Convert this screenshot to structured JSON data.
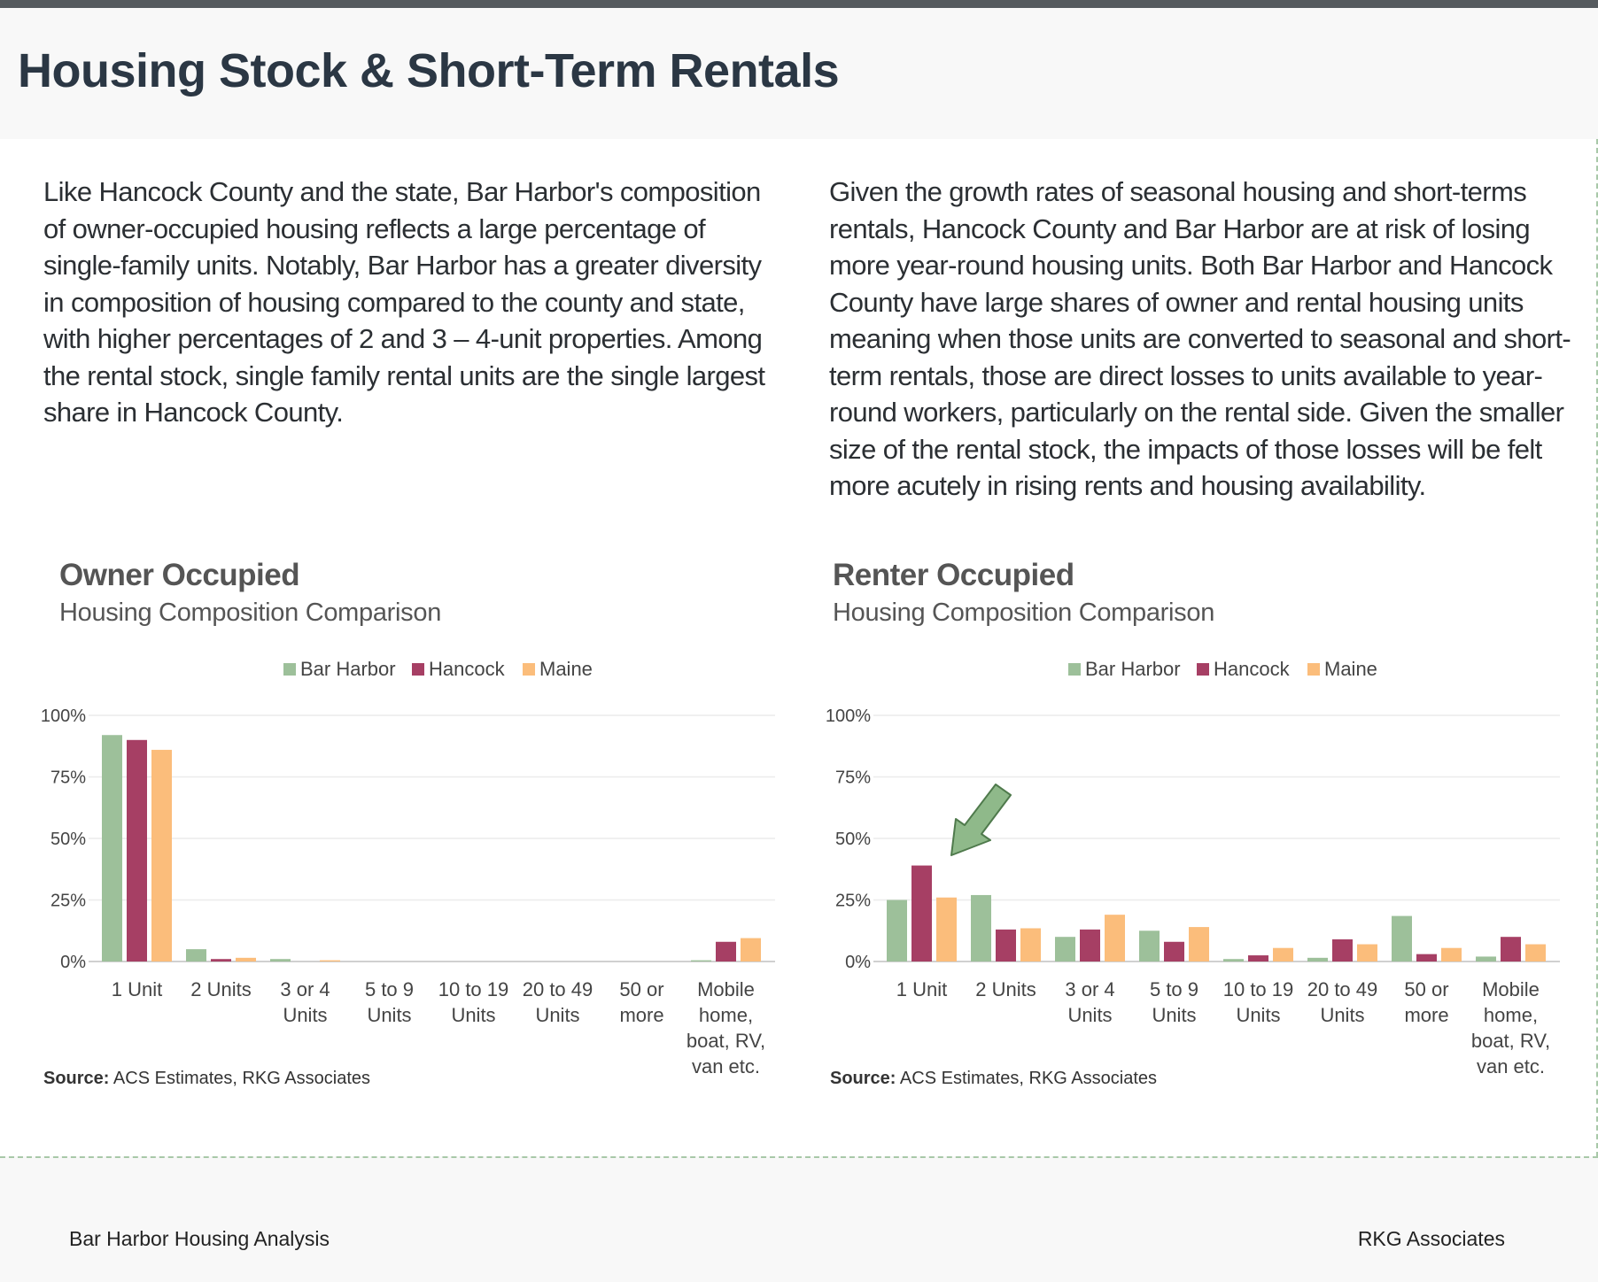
{
  "page": {
    "title": "Housing Stock & Short-Term Rentals",
    "left_paragraph": "Like Hancock County and the state, Bar Harbor's composition of owner-occupied housing reflects a large percentage of single-family units. Notably, Bar Harbor has a greater diversity in composition of housing compared to the county and state, with higher percentages of 2 and 3 – 4-unit properties. Among the rental stock, single family rental units are the single largest share in Hancock County.",
    "right_paragraph": "Given the growth rates of seasonal housing and short-terms rentals, Hancock County and Bar Harbor are at risk of losing more year-round housing units. Both Bar Harbor and Hancock County have large shares of owner and rental housing units meaning when those units are converted to seasonal and short-term rentals, those are direct losses to units available to year-round workers, particularly on the rental side. Given the smaller size of the rental stock, the impacts of those losses will be felt more acutely in rising rents and housing availability."
  },
  "footer": {
    "left": "Bar Harbor Housing Analysis",
    "right": "RKG Associates"
  },
  "colors": {
    "bar_harbor": "#9dc09a",
    "hancock": "#a63f64",
    "maine": "#fbbd7b",
    "arrow": "#8fb98a"
  },
  "chart_data": [
    {
      "type": "bar",
      "title": "Owner Occupied",
      "subtitle": "Housing Composition Comparison",
      "categories": [
        "1 Unit",
        "2 Units",
        "3 or 4 Units",
        "5 to 9 Units",
        "10 to 19 Units",
        "20 to 49 Units",
        "50 or more",
        "Mobile home, boat, RV, van etc."
      ],
      "category_lines": [
        [
          "1 Unit"
        ],
        [
          "2 Units"
        ],
        [
          "3 or 4",
          "Units"
        ],
        [
          "5 to 9",
          "Units"
        ],
        [
          "10 to 19",
          "Units"
        ],
        [
          "20 to 49",
          "Units"
        ],
        [
          "50 or",
          "more"
        ],
        [
          "Mobile",
          "home,",
          "boat, RV,",
          "van etc."
        ]
      ],
      "series": [
        {
          "name": "Bar Harbor",
          "values": [
            92,
            5,
            1,
            0,
            0,
            0,
            0,
            0.5
          ]
        },
        {
          "name": "Hancock",
          "values": [
            90,
            1,
            0,
            0,
            0,
            0,
            0,
            8
          ]
        },
        {
          "name": "Maine",
          "values": [
            86,
            1.5,
            0.5,
            0,
            0,
            0,
            0,
            9.5
          ]
        }
      ],
      "ylim": [
        0,
        100
      ],
      "yticks": [
        "0%",
        "25%",
        "50%",
        "75%",
        "100%"
      ],
      "legend": "top-center",
      "grid": true,
      "source_label": "Source:",
      "source_text": "ACS Estimates, RKG Associates"
    },
    {
      "type": "bar",
      "title": "Renter Occupied",
      "subtitle": "Housing Composition Comparison",
      "categories": [
        "1 Unit",
        "2 Units",
        "3 or 4 Units",
        "5 to 9 Units",
        "10 to 19 Units",
        "20 to 49 Units",
        "50 or more",
        "Mobile home, boat, RV, van etc."
      ],
      "category_lines": [
        [
          "1 Unit"
        ],
        [
          "2 Units"
        ],
        [
          "3 or 4",
          "Units"
        ],
        [
          "5 to 9",
          "Units"
        ],
        [
          "10 to 19",
          "Units"
        ],
        [
          "20 to 49",
          "Units"
        ],
        [
          "50 or",
          "more"
        ],
        [
          "Mobile",
          "home,",
          "boat, RV,",
          "van etc."
        ]
      ],
      "series": [
        {
          "name": "Bar Harbor",
          "values": [
            25,
            27,
            10,
            12.5,
            1,
            1.5,
            18.5,
            2
          ]
        },
        {
          "name": "Hancock",
          "values": [
            39,
            13,
            13,
            8,
            2.5,
            9,
            3,
            10
          ]
        },
        {
          "name": "Maine",
          "values": [
            26,
            13.5,
            19,
            14,
            5.5,
            7,
            5.5,
            7
          ]
        }
      ],
      "ylim": [
        0,
        100
      ],
      "yticks": [
        "0%",
        "25%",
        "50%",
        "75%",
        "100%"
      ],
      "legend": "top-center",
      "grid": true,
      "annotation": "arrow pointing to Hancock 1 Unit bar",
      "source_label": "Source:",
      "source_text": "ACS Estimates, RKG Associates"
    }
  ]
}
